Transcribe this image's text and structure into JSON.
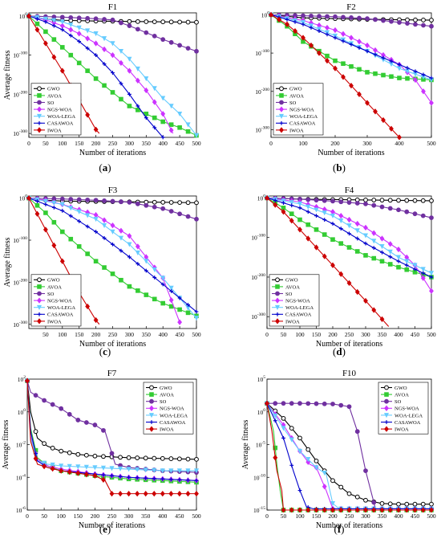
{
  "colors": {
    "GWO": "#000000",
    "AVOA": "#33cc33",
    "SO": "#7030a0",
    "NGS-WOA": "#cc33ff",
    "WOA-LEGA": "#66ccff",
    "CASAWOA": "#0000cc",
    "IWOA": "#cc0000"
  },
  "chart_data": [
    {
      "panel": "(a)",
      "type": "line",
      "title": "F1",
      "xlabel": "Number of iterations",
      "ylabel": "Average fitness",
      "yscale": "log",
      "xlim": [
        0,
        500
      ],
      "ylim_exp": [
        -310,
        8
      ],
      "xticks": [
        "0",
        "50",
        "100",
        "150",
        "200",
        "250",
        "300",
        "350",
        "400",
        "450",
        "500"
      ],
      "yticks": [
        "10^0",
        "10^-100",
        "10^-200",
        "10^-300"
      ],
      "legend": "bottom-left",
      "series": [
        {
          "name": "GWO",
          "x": [
            0,
            50,
            100,
            200,
            300,
            400,
            500
          ],
          "y_exp": [
            0,
            -8,
            -11,
            -13,
            -14,
            -15,
            -16
          ]
        },
        {
          "name": "AVOA",
          "x": [
            0,
            50,
            100,
            200,
            300,
            400,
            450,
            500
          ],
          "y_exp": [
            0,
            -40,
            -80,
            -160,
            -230,
            -270,
            -285,
            -305
          ]
        },
        {
          "name": "SO",
          "x": [
            0,
            100,
            200,
            250,
            300,
            400,
            500
          ],
          "y_exp": [
            0,
            -3,
            -7,
            -10,
            -25,
            -60,
            -90
          ]
        },
        {
          "name": "NGS-WOA",
          "x": [
            0,
            50,
            100,
            150,
            200,
            250,
            300,
            350,
            400,
            430
          ],
          "y_exp": [
            0,
            -10,
            -25,
            -45,
            -70,
            -100,
            -140,
            -190,
            -250,
            -300
          ]
        },
        {
          "name": "WOA-LEGA",
          "x": [
            0,
            100,
            200,
            250,
            300,
            350,
            400,
            450,
            500
          ],
          "y_exp": [
            0,
            -15,
            -45,
            -70,
            -110,
            -160,
            -210,
            -250,
            -305
          ]
        },
        {
          "name": "CASAWOA",
          "x": [
            0,
            50,
            100,
            150,
            200,
            250,
            300,
            350,
            400
          ],
          "y_exp": [
            0,
            -15,
            -35,
            -65,
            -100,
            -145,
            -200,
            -260,
            -310
          ]
        },
        {
          "name": "IWOA",
          "x": [
            0,
            50,
            100,
            150,
            200,
            210
          ],
          "y_exp": [
            0,
            -70,
            -140,
            -215,
            -290,
            -300
          ]
        }
      ]
    },
    {
      "panel": "(b)",
      "type": "line",
      "title": "F2",
      "xlabel": "Number of iterations",
      "ylabel": "",
      "yscale": "log",
      "xlim": [
        0,
        500
      ],
      "ylim_exp": [
        -320,
        5
      ],
      "xticks": [
        "0",
        "100",
        "200",
        "300",
        "400",
        "500"
      ],
      "yticks": [
        "10^0",
        "10^-100",
        "10^-200",
        "10^-300"
      ],
      "legend": "bottom-left",
      "series": [
        {
          "name": "GWO",
          "x": [
            0,
            100,
            200,
            300,
            400,
            500
          ],
          "y_exp": [
            0,
            -8,
            -10,
            -12,
            -13,
            -14
          ]
        },
        {
          "name": "AVOA",
          "x": [
            0,
            50,
            100,
            200,
            300,
            400,
            500
          ],
          "y_exp": [
            0,
            -30,
            -70,
            -120,
            -150,
            -165,
            -170
          ]
        },
        {
          "name": "SO",
          "x": [
            0,
            200,
            300,
            400,
            500
          ],
          "y_exp": [
            0,
            -5,
            -10,
            -20,
            -30
          ]
        },
        {
          "name": "NGS-WOA",
          "x": [
            0,
            100,
            200,
            300,
            400,
            450,
            500
          ],
          "y_exp": [
            0,
            -15,
            -40,
            -80,
            -130,
            -170,
            -230
          ]
        },
        {
          "name": "WOA-LEGA",
          "x": [
            0,
            100,
            200,
            300,
            400,
            450,
            500
          ],
          "y_exp": [
            0,
            -20,
            -55,
            -95,
            -140,
            -155,
            -170
          ]
        },
        {
          "name": "CASAWOA",
          "x": [
            0,
            100,
            200,
            300,
            400,
            500
          ],
          "y_exp": [
            0,
            -25,
            -60,
            -95,
            -130,
            -165
          ]
        },
        {
          "name": "IWOA",
          "x": [
            0,
            50,
            100,
            200,
            300,
            400
          ],
          "y_exp": [
            0,
            -25,
            -60,
            -140,
            -230,
            -320
          ]
        }
      ]
    },
    {
      "panel": "(c)",
      "type": "line",
      "title": "F3",
      "xlabel": "Number of iterations",
      "ylabel": "Average fitness",
      "yscale": "log",
      "xlim": [
        0,
        500
      ],
      "ylim_exp": [
        -310,
        5
      ],
      "xticks": [
        "50",
        "100",
        "150",
        "200",
        "250",
        "300",
        "350",
        "400",
        "450",
        "500"
      ],
      "yticks": [
        "10^0",
        "10^-100",
        "10^-200",
        "10^-300"
      ],
      "legend": "bottom-left",
      "series": [
        {
          "name": "GWO",
          "x": [
            0,
            50,
            100,
            200,
            300,
            400,
            500
          ],
          "y_exp": [
            0,
            -5,
            -7,
            -8,
            -9,
            -10,
            -11
          ]
        },
        {
          "name": "AVOA",
          "x": [
            0,
            50,
            100,
            200,
            300,
            400,
            500
          ],
          "y_exp": [
            0,
            -35,
            -80,
            -150,
            -210,
            -250,
            -280
          ]
        },
        {
          "name": "SO",
          "x": [
            0,
            100,
            200,
            300,
            400,
            500
          ],
          "y_exp": [
            0,
            -2,
            -5,
            -10,
            -25,
            -50
          ]
        },
        {
          "name": "NGS-WOA",
          "x": [
            0,
            50,
            100,
            200,
            300,
            400,
            450
          ],
          "y_exp": [
            0,
            -5,
            -15,
            -40,
            -90,
            -190,
            -295
          ]
        },
        {
          "name": "WOA-LEGA",
          "x": [
            0,
            100,
            200,
            300,
            400,
            500
          ],
          "y_exp": [
            0,
            -15,
            -50,
            -110,
            -190,
            -285
          ]
        },
        {
          "name": "CASAWOA",
          "x": [
            0,
            100,
            200,
            300,
            400,
            500
          ],
          "y_exp": [
            0,
            -30,
            -80,
            -140,
            -205,
            -270
          ]
        },
        {
          "name": "IWOA",
          "x": [
            0,
            50,
            100,
            150,
            200,
            210
          ],
          "y_exp": [
            0,
            -75,
            -150,
            -225,
            -290,
            -300
          ]
        }
      ]
    },
    {
      "panel": "(d)",
      "type": "line",
      "title": "F4",
      "xlabel": "Number of iterations",
      "ylabel": "",
      "yscale": "log",
      "xlim": [
        0,
        500
      ],
      "ylim_exp": [
        -330,
        5
      ],
      "xticks": [
        "0",
        "50",
        "100",
        "150",
        "200",
        "250",
        "300",
        "350",
        "400",
        "450",
        "500"
      ],
      "yticks": [
        "10^0",
        "10^-100",
        "10^-200",
        "10^-300"
      ],
      "legend": "bottom-left",
      "series": [
        {
          "name": "GWO",
          "x": [
            0,
            100,
            200,
            300,
            400,
            500
          ],
          "y_exp": [
            0,
            -3,
            -4,
            -5,
            -6,
            -7
          ]
        },
        {
          "name": "AVOA",
          "x": [
            0,
            50,
            100,
            200,
            300,
            400,
            500
          ],
          "y_exp": [
            0,
            -25,
            -55,
            -105,
            -145,
            -175,
            -200
          ]
        },
        {
          "name": "SO",
          "x": [
            0,
            100,
            200,
            300,
            400,
            500
          ],
          "y_exp": [
            0,
            -3,
            -8,
            -15,
            -30,
            -50
          ]
        },
        {
          "name": "NGS-WOA",
          "x": [
            0,
            100,
            200,
            300,
            400,
            450,
            500
          ],
          "y_exp": [
            0,
            -10,
            -35,
            -75,
            -130,
            -170,
            -235
          ]
        },
        {
          "name": "WOA-LEGA",
          "x": [
            0,
            100,
            200,
            300,
            400,
            500
          ],
          "y_exp": [
            0,
            -15,
            -45,
            -95,
            -150,
            -190
          ]
        },
        {
          "name": "CASAWOA",
          "x": [
            0,
            100,
            200,
            300,
            400,
            500
          ],
          "y_exp": [
            0,
            -25,
            -65,
            -115,
            -160,
            -200
          ]
        },
        {
          "name": "IWOA",
          "x": [
            0,
            50,
            100,
            200,
            300,
            370
          ],
          "y_exp": [
            0,
            -35,
            -80,
            -170,
            -260,
            -325
          ]
        }
      ]
    },
    {
      "panel": "(e)",
      "type": "line",
      "title": "F7",
      "xlabel": "Number of iterations",
      "ylabel": "Average fitness",
      "yscale": "log",
      "xlim": [
        0,
        500
      ],
      "ylim_exp": [
        -6,
        2
      ],
      "xticks": [
        "0",
        "50",
        "100",
        "150",
        "200",
        "250",
        "300",
        "350",
        "400",
        "450",
        "500"
      ],
      "yticks": [
        "10^2",
        "10^0",
        "10^-2",
        "10^-4",
        "10^-6"
      ],
      "legend": "top-right",
      "series": [
        {
          "name": "GWO",
          "x": [
            0,
            10,
            30,
            60,
            100,
            150,
            200,
            300,
            400,
            500
          ],
          "y_exp": [
            1.9,
            0.0,
            -1.6,
            -2.1,
            -2.4,
            -2.6,
            -2.7,
            -2.8,
            -2.85,
            -2.9
          ]
        },
        {
          "name": "AVOA",
          "x": [
            0,
            10,
            30,
            60,
            100,
            200,
            300,
            400,
            500
          ],
          "y_exp": [
            1.9,
            -1.0,
            -2.8,
            -3.3,
            -3.6,
            -3.9,
            -4.1,
            -4.2,
            -4.3
          ]
        },
        {
          "name": "SO",
          "x": [
            0,
            10,
            50,
            100,
            150,
            200,
            230,
            260,
            300,
            400,
            500
          ],
          "y_exp": [
            1.9,
            1.2,
            0.7,
            0.2,
            -0.5,
            -0.8,
            -1.2,
            -3.2,
            -3.4,
            -3.6,
            -3.7
          ]
        },
        {
          "name": "NGS-WOA",
          "x": [
            0,
            10,
            30,
            60,
            100,
            200,
            300,
            400,
            500
          ],
          "y_exp": [
            1.9,
            -1.5,
            -2.9,
            -3.3,
            -3.5,
            -3.8,
            -4.0,
            -4.1,
            -4.2
          ]
        },
        {
          "name": "WOA-LEGA",
          "x": [
            0,
            10,
            30,
            60,
            100,
            200,
            300,
            400,
            500
          ],
          "y_exp": [
            1.9,
            -1.6,
            -3.0,
            -3.2,
            -3.3,
            -3.4,
            -3.5,
            -3.6,
            -3.6
          ]
        },
        {
          "name": "CASAWOA",
          "x": [
            0,
            10,
            30,
            60,
            100,
            200,
            300,
            400,
            500
          ],
          "y_exp": [
            1.9,
            -1.2,
            -3.0,
            -3.4,
            -3.6,
            -3.8,
            -4.0,
            -4.1,
            -4.2
          ]
        },
        {
          "name": "IWOA",
          "x": [
            0,
            10,
            30,
            60,
            100,
            200,
            230,
            250,
            300,
            400,
            500
          ],
          "y_exp": [
            1.9,
            -1.8,
            -3.2,
            -3.4,
            -3.6,
            -3.9,
            -4.2,
            -5.0,
            -5.0,
            -5.0,
            -5.0
          ]
        }
      ]
    },
    {
      "panel": "(f)",
      "type": "line",
      "title": "F10",
      "xlabel": "Number of iterations",
      "ylabel": "Average fitness",
      "yscale": "log",
      "xlim": [
        0,
        500
      ],
      "ylim_exp": [
        -15,
        5
      ],
      "xticks": [
        "0",
        "50",
        "100",
        "150",
        "200",
        "250",
        "300",
        "350",
        "400",
        "450",
        "500"
      ],
      "yticks": [
        "10^5",
        "10^0",
        "10^-5",
        "10^-10",
        "10^-15"
      ],
      "legend": "top-right",
      "series": [
        {
          "name": "GWO",
          "x": [
            0,
            50,
            100,
            150,
            200,
            250,
            300,
            350,
            400,
            500
          ],
          "y_exp": [
            1.3,
            -1.0,
            -4.0,
            -7.5,
            -10.5,
            -12.5,
            -13.5,
            -14.0,
            -14.1,
            -14.1
          ]
        },
        {
          "name": "AVOA",
          "x": [
            0,
            20,
            30,
            40,
            50,
            500
          ],
          "y_exp": [
            1.3,
            -3.0,
            -8.0,
            -12.0,
            -15.0,
            -15.0
          ]
        },
        {
          "name": "SO",
          "x": [
            0,
            50,
            100,
            200,
            250,
            275,
            300,
            330,
            350,
            500
          ],
          "y_exp": [
            1.3,
            1.3,
            1.3,
            1.2,
            0.8,
            -3.0,
            -9.0,
            -14.8,
            -14.8,
            -14.8
          ]
        },
        {
          "name": "NGS-WOA",
          "x": [
            0,
            50,
            100,
            130,
            150,
            180,
            200,
            500
          ],
          "y_exp": [
            1.3,
            -2.0,
            -6.0,
            -8.0,
            -8.5,
            -12.0,
            -14.8,
            -14.8
          ]
        },
        {
          "name": "WOA-LEGA",
          "x": [
            0,
            50,
            100,
            150,
            180,
            200,
            220,
            500
          ],
          "y_exp": [
            1.3,
            -2.5,
            -6.0,
            -8.5,
            -9.5,
            -14.0,
            -14.8,
            -14.8
          ]
        },
        {
          "name": "CASAWOA",
          "x": [
            0,
            50,
            80,
            100,
            120,
            140,
            500
          ],
          "y_exp": [
            1.3,
            -4.0,
            -9.0,
            -12.0,
            -14.5,
            -14.8,
            -14.8
          ]
        },
        {
          "name": "IWOA",
          "x": [
            0,
            15,
            30,
            45,
            50,
            500
          ],
          "y_exp": [
            1.3,
            -3.0,
            -9.0,
            -12.0,
            -15.0,
            -15.0
          ]
        }
      ]
    }
  ]
}
